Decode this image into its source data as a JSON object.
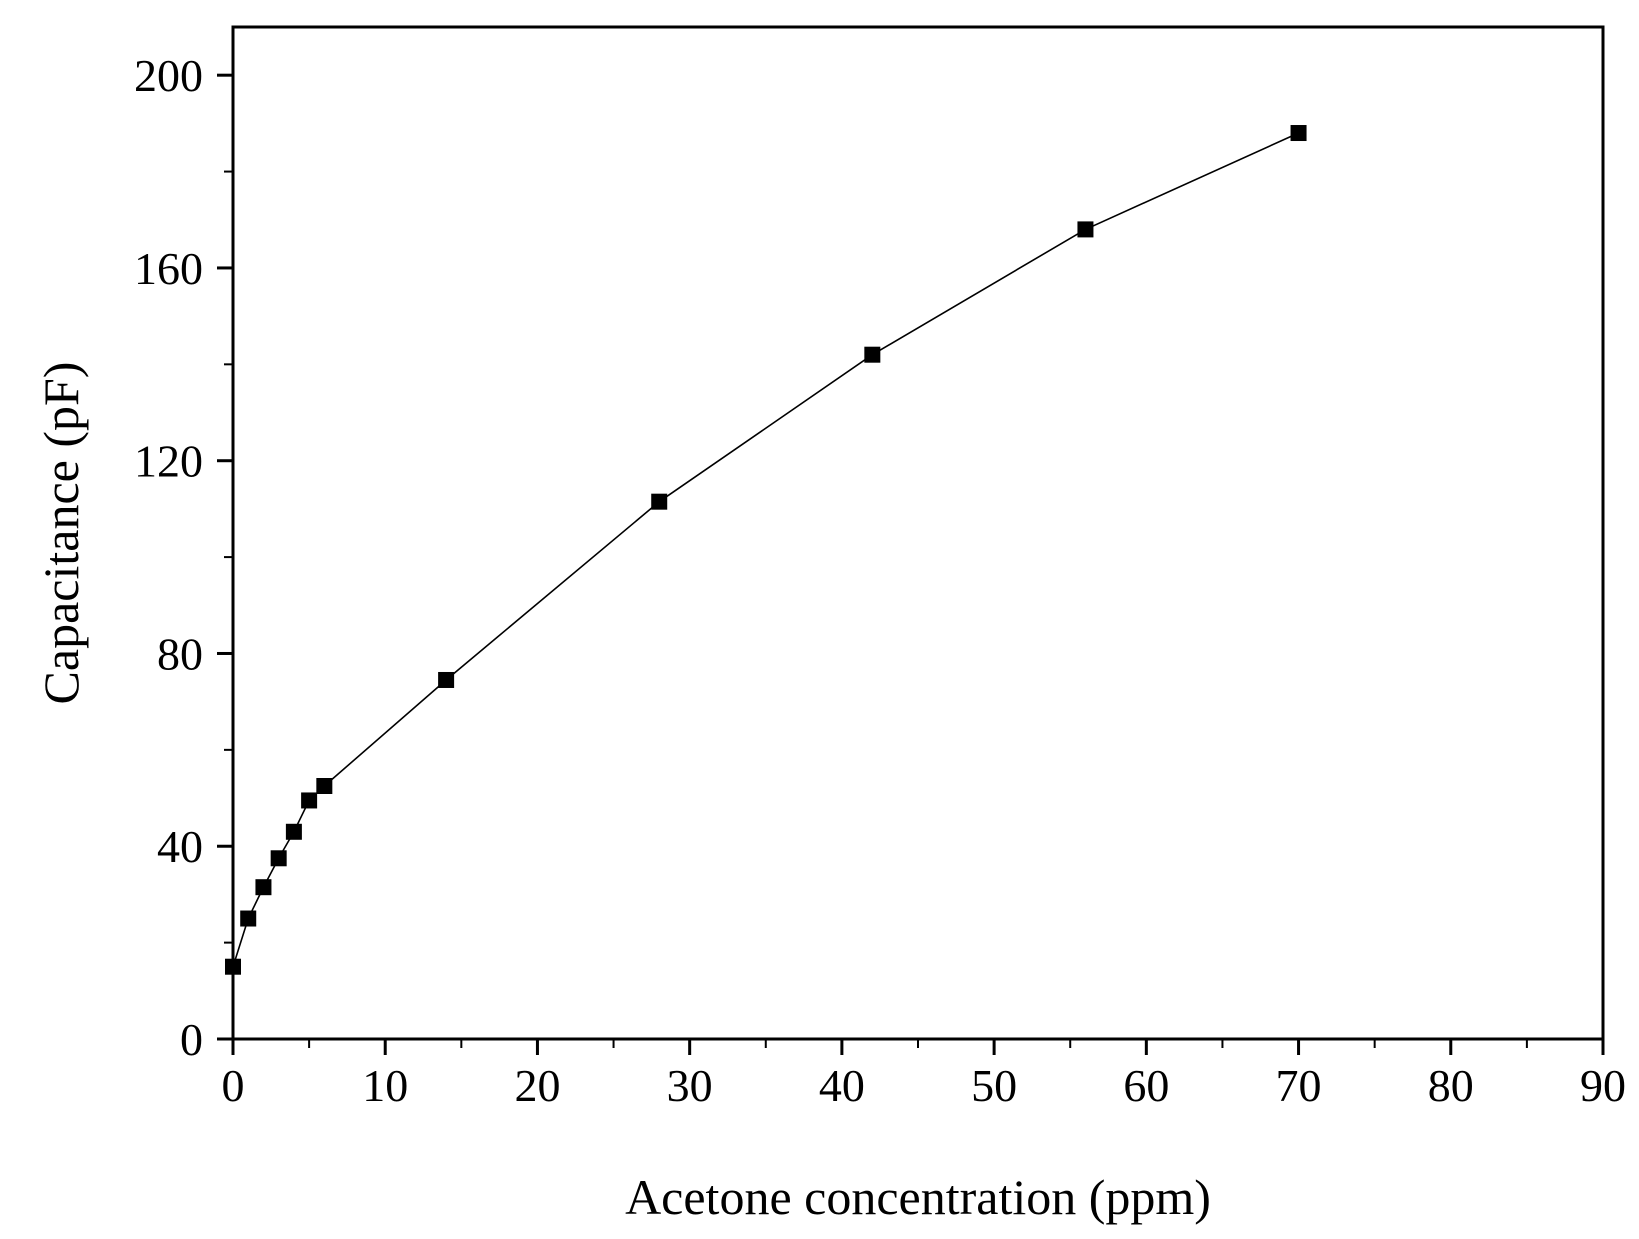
{
  "chart_data": {
    "type": "line",
    "title": "",
    "xlabel": "Acetone concentration (ppm)",
    "ylabel": "Capacitance (pF)",
    "xlim": [
      0,
      90
    ],
    "ylim": [
      0,
      210
    ],
    "x_ticks": [
      0,
      10,
      20,
      30,
      40,
      50,
      60,
      70,
      80,
      90
    ],
    "x_tick_labels": [
      "0",
      "10",
      "20",
      "30",
      "40",
      "50",
      "60",
      "70",
      "80",
      "90"
    ],
    "y_ticks": [
      0,
      40,
      80,
      120,
      160,
      200
    ],
    "y_tick_labels": [
      "0",
      "40",
      "80",
      "120",
      "160",
      "200"
    ],
    "x_minor_step": 5,
    "y_minor_step": 20,
    "grid": false,
    "legend": "none",
    "series": [
      {
        "name": "Capacitance",
        "marker": "square",
        "color": "#000000",
        "x": [
          0,
          1,
          2,
          3,
          4,
          5,
          6,
          14,
          28,
          42,
          56,
          70
        ],
        "y": [
          15,
          25,
          31.5,
          37.5,
          43,
          49.5,
          52.5,
          74.5,
          111.5,
          142,
          168,
          188
        ]
      }
    ]
  }
}
